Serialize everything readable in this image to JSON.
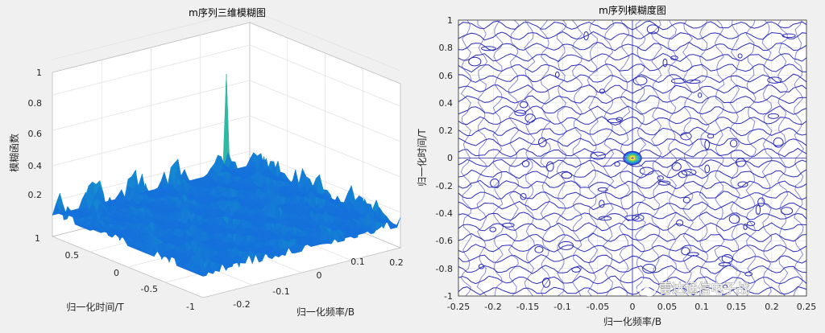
{
  "chart_data": [
    {
      "type": "surface",
      "title": "m序列三维模糊图",
      "xlabel": "归一化频率/B",
      "ylabel": "归一化时间/T",
      "zlabel": "模糊函数",
      "x_ticks": [
        "-0.2",
        "-0.1",
        "0",
        "0.1",
        "0.2"
      ],
      "y_ticks": [
        "1",
        "0.5",
        "0",
        "-0.5",
        "-1"
      ],
      "z_ticks": [
        "0.2",
        "0.4",
        "0.6",
        "0.8",
        "1"
      ],
      "xlim": [
        -0.25,
        0.25
      ],
      "ylim": [
        -1,
        1
      ],
      "zlim": [
        0,
        1
      ],
      "peak": {
        "x": 0,
        "y": 0,
        "z": 0.95
      },
      "sidelobe_level": 0.3,
      "colormap": "parula",
      "grid": true
    },
    {
      "type": "contour",
      "title": "m序列模糊度图",
      "xlabel": "归一化频率/B",
      "ylabel": "归一化时间/T",
      "x_ticks": [
        "-0.25",
        "-0.2",
        "-0.15",
        "-0.1",
        "-0.05",
        "0",
        "0.05",
        "0.1",
        "0.15",
        "0.2",
        "0.25"
      ],
      "y_ticks": [
        "1",
        "0.8",
        "0.6",
        "0.4",
        "0.2",
        "0",
        "-0.2",
        "-0.4",
        "-0.6",
        "-0.8",
        "-1"
      ],
      "xlim": [
        -0.25,
        0.25
      ],
      "ylim": [
        -1,
        1
      ],
      "mainlobe": {
        "x": 0,
        "y": 0
      },
      "line_color": "#2b2bb8",
      "grid": true
    }
  ],
  "watermark": "雷达通信电子战",
  "colors": {
    "figure_bg": "#f0f0f0",
    "axes_bg": "#ffffff",
    "grid": "#e6e6e6",
    "contour": "#2b2bb8"
  }
}
